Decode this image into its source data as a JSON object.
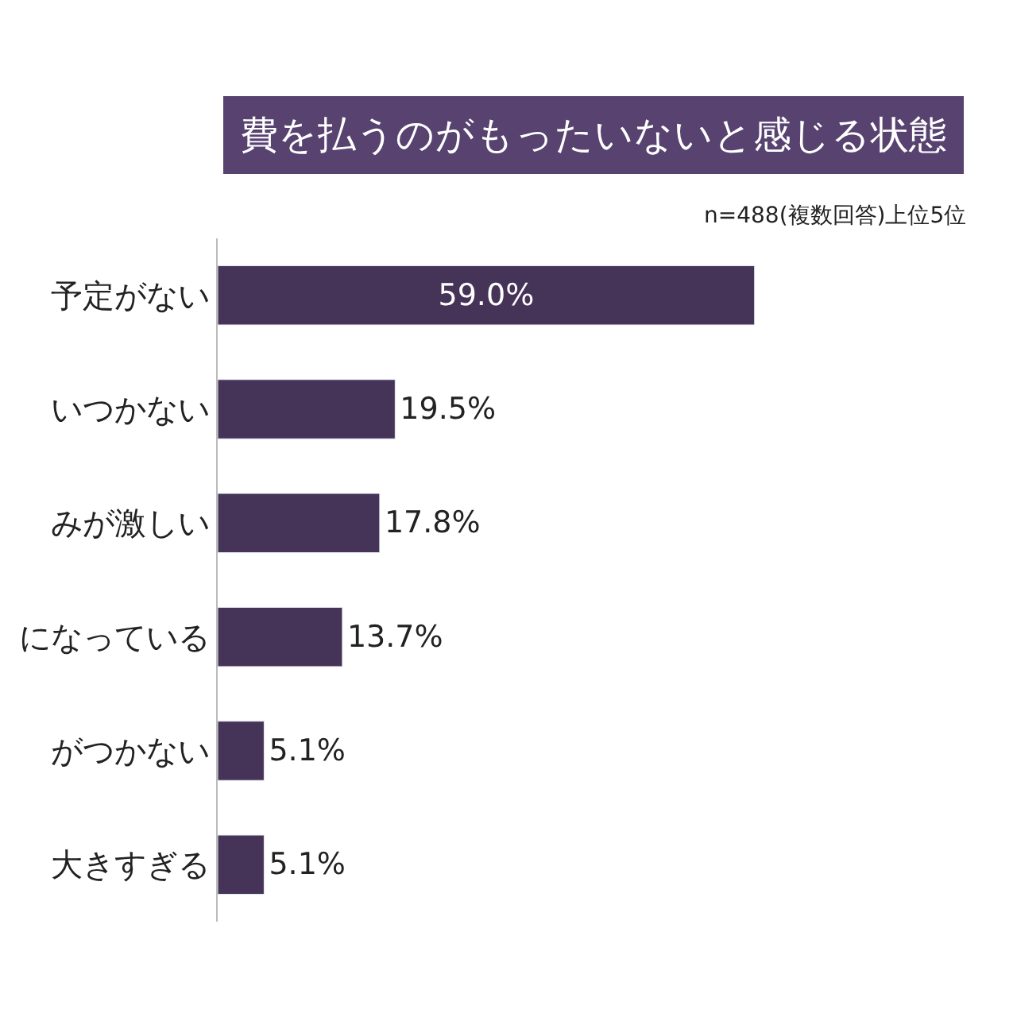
{
  "chart_data": {
    "type": "bar",
    "orientation": "horizontal",
    "title": "費を払うのがもったいないと感じる状態",
    "subtitle": "n=488(複数回答)上位5位",
    "categories": [
      "予定がない",
      "いつかない",
      "みが激しい",
      "になっている",
      "がつかない",
      "大きすぎる"
    ],
    "values": [
      59.0,
      19.5,
      17.8,
      13.7,
      5.1,
      5.1
    ],
    "value_labels": [
      "59.0%",
      "19.5%",
      "17.8%",
      "13.7%",
      "5.1%",
      "5.1%"
    ],
    "color": "#463358"
  }
}
